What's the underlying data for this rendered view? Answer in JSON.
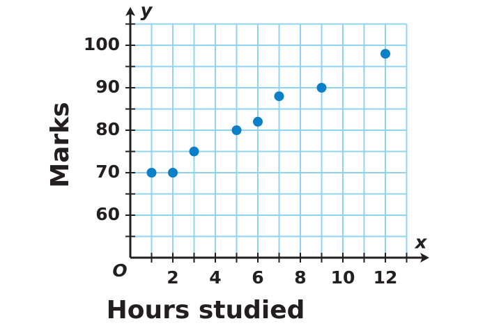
{
  "chart_data": {
    "type": "scatter",
    "x_label": "Hours studied",
    "y_label": "Marks",
    "x_axis_name": "x",
    "y_axis_name": "y",
    "origin_label": "O",
    "x": [
      1,
      2,
      3,
      5,
      6,
      7,
      9,
      12
    ],
    "values": [
      70,
      70,
      75,
      80,
      82,
      88,
      90,
      98
    ],
    "color": "#0b7fc7",
    "xlim": [
      0,
      13
    ],
    "ylim": [
      50,
      105
    ],
    "xticks": [
      2,
      4,
      6,
      8,
      10,
      12
    ],
    "yticks": [
      60,
      70,
      80,
      90,
      100
    ],
    "minor_xticks": [
      1,
      3,
      5,
      7,
      9,
      11,
      13
    ],
    "minor_yticks": [
      55,
      65,
      75,
      85,
      95,
      105
    ],
    "grid": true,
    "grid_color": "#8fd3f0"
  }
}
